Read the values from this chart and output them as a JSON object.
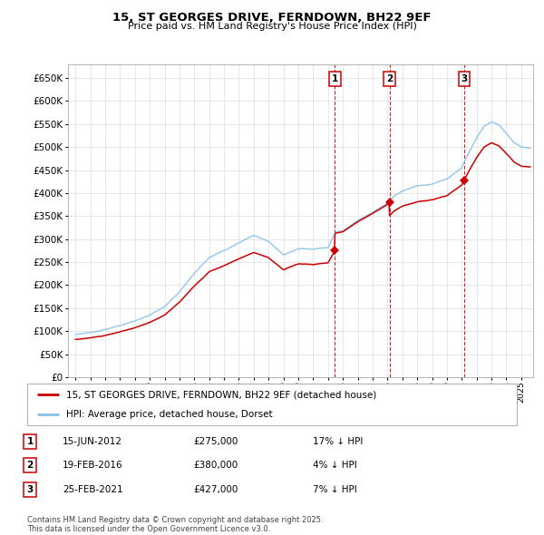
{
  "title": "15, ST GEORGES DRIVE, FERNDOWN, BH22 9EF",
  "subtitle": "Price paid vs. HM Land Registry's House Price Index (HPI)",
  "ylim": [
    0,
    680000
  ],
  "yticks": [
    0,
    50000,
    100000,
    150000,
    200000,
    250000,
    300000,
    350000,
    400000,
    450000,
    500000,
    550000,
    600000,
    650000
  ],
  "xlim_start": 1994.5,
  "xlim_end": 2025.8,
  "xticks": [
    1995,
    1996,
    1997,
    1998,
    1999,
    2000,
    2001,
    2002,
    2003,
    2004,
    2005,
    2006,
    2007,
    2008,
    2009,
    2010,
    2011,
    2012,
    2013,
    2014,
    2015,
    2016,
    2017,
    2018,
    2019,
    2020,
    2021,
    2022,
    2023,
    2024,
    2025
  ],
  "line1_color": "#cc0000",
  "line2_color": "#85c1e9",
  "transaction_color": "#cc0000",
  "vline_color": "#cc0000",
  "transactions": [
    {
      "year": 2012.46,
      "price": 275000,
      "label": "1"
    },
    {
      "year": 2016.13,
      "price": 380000,
      "label": "2"
    },
    {
      "year": 2021.15,
      "price": 427000,
      "label": "3"
    }
  ],
  "legend_line1": "15, ST GEORGES DRIVE, FERNDOWN, BH22 9EF (detached house)",
  "legend_line2": "HPI: Average price, detached house, Dorset",
  "table_rows": [
    {
      "num": "1",
      "date": "15-JUN-2012",
      "price": "£275,000",
      "change": "17% ↓ HPI"
    },
    {
      "num": "2",
      "date": "19-FEB-2016",
      "price": "£380,000",
      "change": "4% ↓ HPI"
    },
    {
      "num": "3",
      "date": "25-FEB-2021",
      "price": "£427,000",
      "change": "7% ↓ HPI"
    }
  ],
  "footnote": "Contains HM Land Registry data © Crown copyright and database right 2025.\nThis data is licensed under the Open Government Licence v3.0.",
  "background_color": "#ffffff",
  "grid_color": "#dddddd"
}
